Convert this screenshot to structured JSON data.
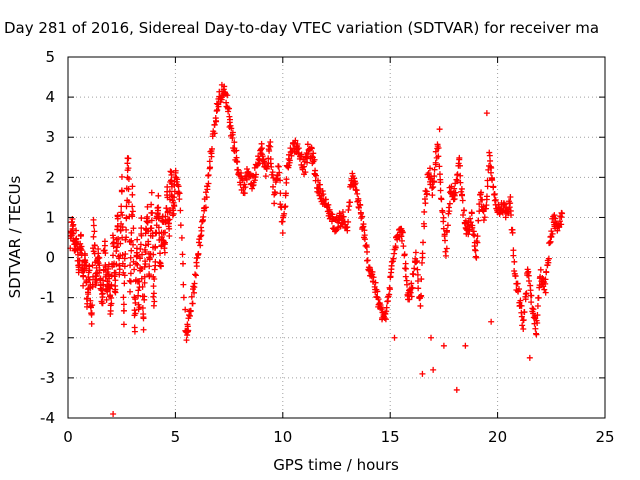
{
  "chart_data": {
    "type": "scatter",
    "title": "Day 281 of 2016, Sidereal Day-to-day VTEC variation (SDTVAR) for receiver ma",
    "xlabel": "GPS time / hours",
    "ylabel": "SDTVAR / TECUs",
    "xlim": [
      0,
      25
    ],
    "ylim": [
      -4,
      5
    ],
    "x_ticks": [
      0,
      5,
      10,
      15,
      20,
      25
    ],
    "y_ticks": [
      -4,
      -3,
      -2,
      -1,
      0,
      1,
      2,
      3,
      4,
      5
    ],
    "grid": true,
    "marker": "plus",
    "color": "#ff0000",
    "trace": [
      [
        0.1,
        0.3
      ],
      [
        0.2,
        0.9
      ],
      [
        0.3,
        0.2
      ],
      [
        0.4,
        0.6
      ],
      [
        0.5,
        -0.4
      ],
      [
        0.6,
        0.5
      ],
      [
        0.7,
        -0.6
      ],
      [
        0.8,
        0.1
      ],
      [
        0.9,
        -1.1
      ],
      [
        1.0,
        -0.3
      ],
      [
        1.1,
        -1.6
      ],
      [
        1.2,
        0.8
      ],
      [
        1.3,
        -0.8
      ],
      [
        1.4,
        0.2
      ],
      [
        1.5,
        -0.5
      ],
      [
        1.6,
        -1.2
      ],
      [
        1.7,
        0.3
      ],
      [
        1.8,
        -0.9
      ],
      [
        1.9,
        -0.2
      ],
      [
        2.0,
        -1.4
      ],
      [
        2.1,
        0.6
      ],
      [
        2.2,
        -1.0
      ],
      [
        2.3,
        1.1
      ],
      [
        2.4,
        -0.4
      ],
      [
        2.5,
        1.9
      ],
      [
        2.6,
        -1.5
      ],
      [
        2.7,
        0.8
      ],
      [
        2.8,
        2.6
      ],
      [
        2.9,
        -0.8
      ],
      [
        3.0,
        1.7
      ],
      [
        3.1,
        -1.9
      ],
      [
        3.2,
        0.4
      ],
      [
        3.3,
        -1.3
      ],
      [
        3.4,
        0.9
      ],
      [
        3.5,
        -1.7
      ],
      [
        3.6,
        0.2
      ],
      [
        3.7,
        1.2
      ],
      [
        3.8,
        -0.6
      ],
      [
        3.9,
        1.5
      ],
      [
        4.0,
        -1.1
      ],
      [
        4.1,
        0.7
      ],
      [
        4.2,
        1.4
      ],
      [
        4.3,
        -0.3
      ],
      [
        4.4,
        1.1
      ],
      [
        4.5,
        0.2
      ],
      [
        4.6,
        1.6
      ],
      [
        4.7,
        0.6
      ],
      [
        4.8,
        2.2
      ],
      [
        4.9,
        1.0
      ],
      [
        5.0,
        2.1
      ],
      [
        5.2,
        1.5
      ],
      [
        5.5,
        -2.0
      ],
      [
        5.6,
        -1.7
      ],
      [
        5.8,
        -1.0
      ],
      [
        6.0,
        -0.1
      ],
      [
        6.2,
        0.7
      ],
      [
        6.4,
        1.4
      ],
      [
        6.6,
        2.3
      ],
      [
        6.8,
        3.2
      ],
      [
        7.0,
        3.9
      ],
      [
        7.2,
        4.2
      ],
      [
        7.4,
        3.9
      ],
      [
        7.6,
        3.2
      ],
      [
        7.8,
        2.6
      ],
      [
        8.0,
        2.0
      ],
      [
        8.2,
        1.7
      ],
      [
        8.4,
        2.2
      ],
      [
        8.6,
        1.8
      ],
      [
        8.8,
        2.4
      ],
      [
        9.0,
        2.7
      ],
      [
        9.2,
        2.1
      ],
      [
        9.4,
        2.8
      ],
      [
        9.6,
        1.5
      ],
      [
        9.8,
        2.3
      ],
      [
        10.0,
        0.7
      ],
      [
        10.2,
        2.2
      ],
      [
        10.4,
        2.7
      ],
      [
        10.6,
        2.8
      ],
      [
        10.8,
        2.6
      ],
      [
        11.0,
        2.2
      ],
      [
        11.2,
        2.7
      ],
      [
        11.4,
        2.5
      ],
      [
        11.6,
        1.8
      ],
      [
        11.8,
        1.6
      ],
      [
        12.0,
        1.3
      ],
      [
        12.2,
        1.1
      ],
      [
        12.4,
        0.8
      ],
      [
        12.6,
        0.9
      ],
      [
        12.8,
        1.0
      ],
      [
        13.0,
        0.7
      ],
      [
        13.2,
        2.0
      ],
      [
        13.4,
        1.7
      ],
      [
        13.6,
        1.2
      ],
      [
        13.8,
        0.5
      ],
      [
        14.0,
        -0.2
      ],
      [
        14.2,
        -0.5
      ],
      [
        14.4,
        -1.0
      ],
      [
        14.6,
        -1.4
      ],
      [
        14.8,
        -1.5
      ],
      [
        15.0,
        -0.6
      ],
      [
        15.2,
        0.3
      ],
      [
        15.4,
        0.7
      ],
      [
        15.6,
        0.5
      ],
      [
        15.8,
        -1.0
      ],
      [
        16.0,
        -0.8
      ],
      [
        16.2,
        0.0
      ],
      [
        16.4,
        -1.3
      ],
      [
        16.6,
        1.2
      ],
      [
        16.8,
        2.2
      ],
      [
        17.0,
        1.6
      ],
      [
        17.2,
        2.9
      ],
      [
        17.4,
        1.3
      ],
      [
        17.6,
        0.2
      ],
      [
        17.8,
        1.8
      ],
      [
        18.0,
        1.5
      ],
      [
        18.2,
        2.4
      ],
      [
        18.4,
        1.2
      ],
      [
        18.6,
        0.6
      ],
      [
        18.8,
        1.0
      ],
      [
        19.0,
        -0.1
      ],
      [
        19.2,
        1.6
      ],
      [
        19.4,
        0.9
      ],
      [
        19.6,
        2.5
      ],
      [
        19.8,
        1.7
      ],
      [
        20.0,
        1.2
      ],
      [
        20.2,
        1.3
      ],
      [
        20.4,
        1.1
      ],
      [
        20.6,
        1.4
      ],
      [
        20.8,
        -0.5
      ],
      [
        21.0,
        -1.0
      ],
      [
        21.2,
        -1.7
      ],
      [
        21.4,
        -0.3
      ],
      [
        21.6,
        -1.2
      ],
      [
        21.8,
        -1.8
      ],
      [
        22.0,
        -0.4
      ],
      [
        22.2,
        -0.8
      ],
      [
        22.4,
        0.2
      ],
      [
        22.6,
        1.0
      ],
      [
        22.8,
        0.6
      ],
      [
        23.0,
        1.1
      ]
    ],
    "outliers": [
      [
        2.1,
        -3.9
      ],
      [
        16.5,
        -2.9
      ],
      [
        17.0,
        -2.8
      ],
      [
        17.5,
        -2.2
      ],
      [
        18.1,
        -3.3
      ],
      [
        18.5,
        -2.2
      ],
      [
        19.7,
        -1.6
      ],
      [
        21.5,
        -2.5
      ],
      [
        17.3,
        3.2
      ],
      [
        19.5,
        3.6
      ],
      [
        16.9,
        -2.0
      ],
      [
        15.2,
        -2.0
      ]
    ]
  }
}
